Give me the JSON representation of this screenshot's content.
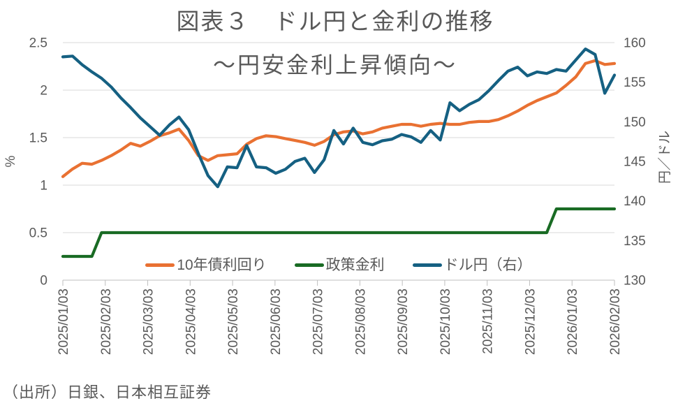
{
  "title": "図表３　ドル円と金利の推移",
  "subtitle": "〜円安金利上昇傾向〜",
  "source_note": "（出所）日銀、日本相互証券",
  "palette": {
    "grid_line": "#D9D9D9",
    "axis_line": "#BFBFBF",
    "text": "#595959",
    "background": "#FFFFFF"
  },
  "chart_data": {
    "type": "line",
    "title": "図表３　ドル円と金利の推移",
    "subtitle": "〜円安金利上昇傾向〜",
    "grid": "horizontal",
    "legend_position": "bottom-inside",
    "x_tick_labels": [
      "2025/01/03",
      "2025/02/03",
      "2025/03/03",
      "2025/04/03",
      "2025/05/03",
      "2025/06/03",
      "2025/07/03",
      "2025/08/03",
      "2025/09/03",
      "2025/10/03",
      "2025/11/03",
      "2025/12/03",
      "2026/01/03",
      "2026/02/03"
    ],
    "left_axis": {
      "label": "%",
      "min": 0,
      "max": 2.5,
      "ticks": [
        0,
        0.5,
        1,
        1.5,
        2,
        2.5
      ]
    },
    "right_axis": {
      "label": "円／ドル",
      "min": 130,
      "max": 160,
      "ticks": [
        130,
        135,
        140,
        145,
        150,
        155,
        160
      ]
    },
    "dates": [
      "2025/01/03",
      "2025/01/10",
      "2025/01/17",
      "2025/01/24",
      "2025/01/31",
      "2025/02/07",
      "2025/02/14",
      "2025/02/21",
      "2025/02/28",
      "2025/03/07",
      "2025/03/14",
      "2025/03/21",
      "2025/03/28",
      "2025/04/04",
      "2025/04/11",
      "2025/04/18",
      "2025/04/25",
      "2025/05/02",
      "2025/05/09",
      "2025/05/16",
      "2025/05/23",
      "2025/05/30",
      "2025/06/06",
      "2025/06/13",
      "2025/06/20",
      "2025/06/27",
      "2025/07/04",
      "2025/07/11",
      "2025/07/18",
      "2025/07/25",
      "2025/08/01",
      "2025/08/08",
      "2025/08/15",
      "2025/08/22",
      "2025/08/29",
      "2025/09/05",
      "2025/09/12",
      "2025/09/19",
      "2025/09/26",
      "2025/10/03",
      "2025/10/10",
      "2025/10/17",
      "2025/10/24",
      "2025/10/31",
      "2025/11/07",
      "2025/11/14",
      "2025/11/21",
      "2025/11/28",
      "2025/12/05",
      "2025/12/12",
      "2025/12/19",
      "2025/12/26",
      "2026/01/02",
      "2026/01/09",
      "2026/01/16",
      "2026/01/23",
      "2026/01/30",
      "2026/02/03"
    ],
    "series": [
      {
        "name": "10年債利回り",
        "axis": "left",
        "color": "#E97132",
        "values": [
          1.09,
          1.17,
          1.23,
          1.22,
          1.26,
          1.31,
          1.37,
          1.44,
          1.41,
          1.46,
          1.52,
          1.55,
          1.59,
          1.47,
          1.31,
          1.26,
          1.31,
          1.32,
          1.33,
          1.43,
          1.49,
          1.52,
          1.51,
          1.49,
          1.47,
          1.45,
          1.42,
          1.46,
          1.53,
          1.56,
          1.57,
          1.54,
          1.56,
          1.6,
          1.62,
          1.64,
          1.64,
          1.62,
          1.64,
          1.65,
          1.64,
          1.64,
          1.66,
          1.67,
          1.67,
          1.69,
          1.73,
          1.78,
          1.84,
          1.89,
          1.93,
          1.97,
          2.05,
          2.14,
          2.28,
          2.31,
          2.27,
          2.28
        ]
      },
      {
        "name": "政策金利",
        "axis": "left",
        "color": "#196B24",
        "values": [
          0.25,
          0.25,
          0.25,
          0.25,
          0.5,
          0.5,
          0.5,
          0.5,
          0.5,
          0.5,
          0.5,
          0.5,
          0.5,
          0.5,
          0.5,
          0.5,
          0.5,
          0.5,
          0.5,
          0.5,
          0.5,
          0.5,
          0.5,
          0.5,
          0.5,
          0.5,
          0.5,
          0.5,
          0.5,
          0.5,
          0.5,
          0.5,
          0.5,
          0.5,
          0.5,
          0.5,
          0.5,
          0.5,
          0.5,
          0.5,
          0.5,
          0.5,
          0.5,
          0.5,
          0.5,
          0.5,
          0.5,
          0.5,
          0.5,
          0.5,
          0.5,
          0.75,
          0.75,
          0.75,
          0.75,
          0.75,
          0.75,
          0.75
        ]
      },
      {
        "name": "ドル円（右）",
        "axis": "right",
        "color": "#156082",
        "values": [
          158.2,
          158.3,
          157.2,
          156.3,
          155.5,
          154.4,
          153.0,
          151.8,
          150.5,
          149.4,
          148.3,
          149.6,
          150.6,
          149.0,
          146.0,
          143.2,
          141.8,
          144.3,
          144.2,
          147.0,
          144.3,
          144.2,
          143.5,
          144.0,
          145.0,
          145.4,
          143.6,
          145.2,
          148.9,
          147.2,
          149.2,
          147.4,
          147.1,
          147.6,
          147.8,
          148.4,
          148.1,
          147.4,
          148.9,
          147.7,
          152.4,
          151.4,
          152.2,
          152.8,
          153.9,
          155.2,
          156.4,
          156.9,
          155.8,
          156.3,
          156.1,
          156.6,
          156.4,
          157.8,
          159.2,
          158.5,
          153.6,
          155.9
        ]
      }
    ]
  }
}
